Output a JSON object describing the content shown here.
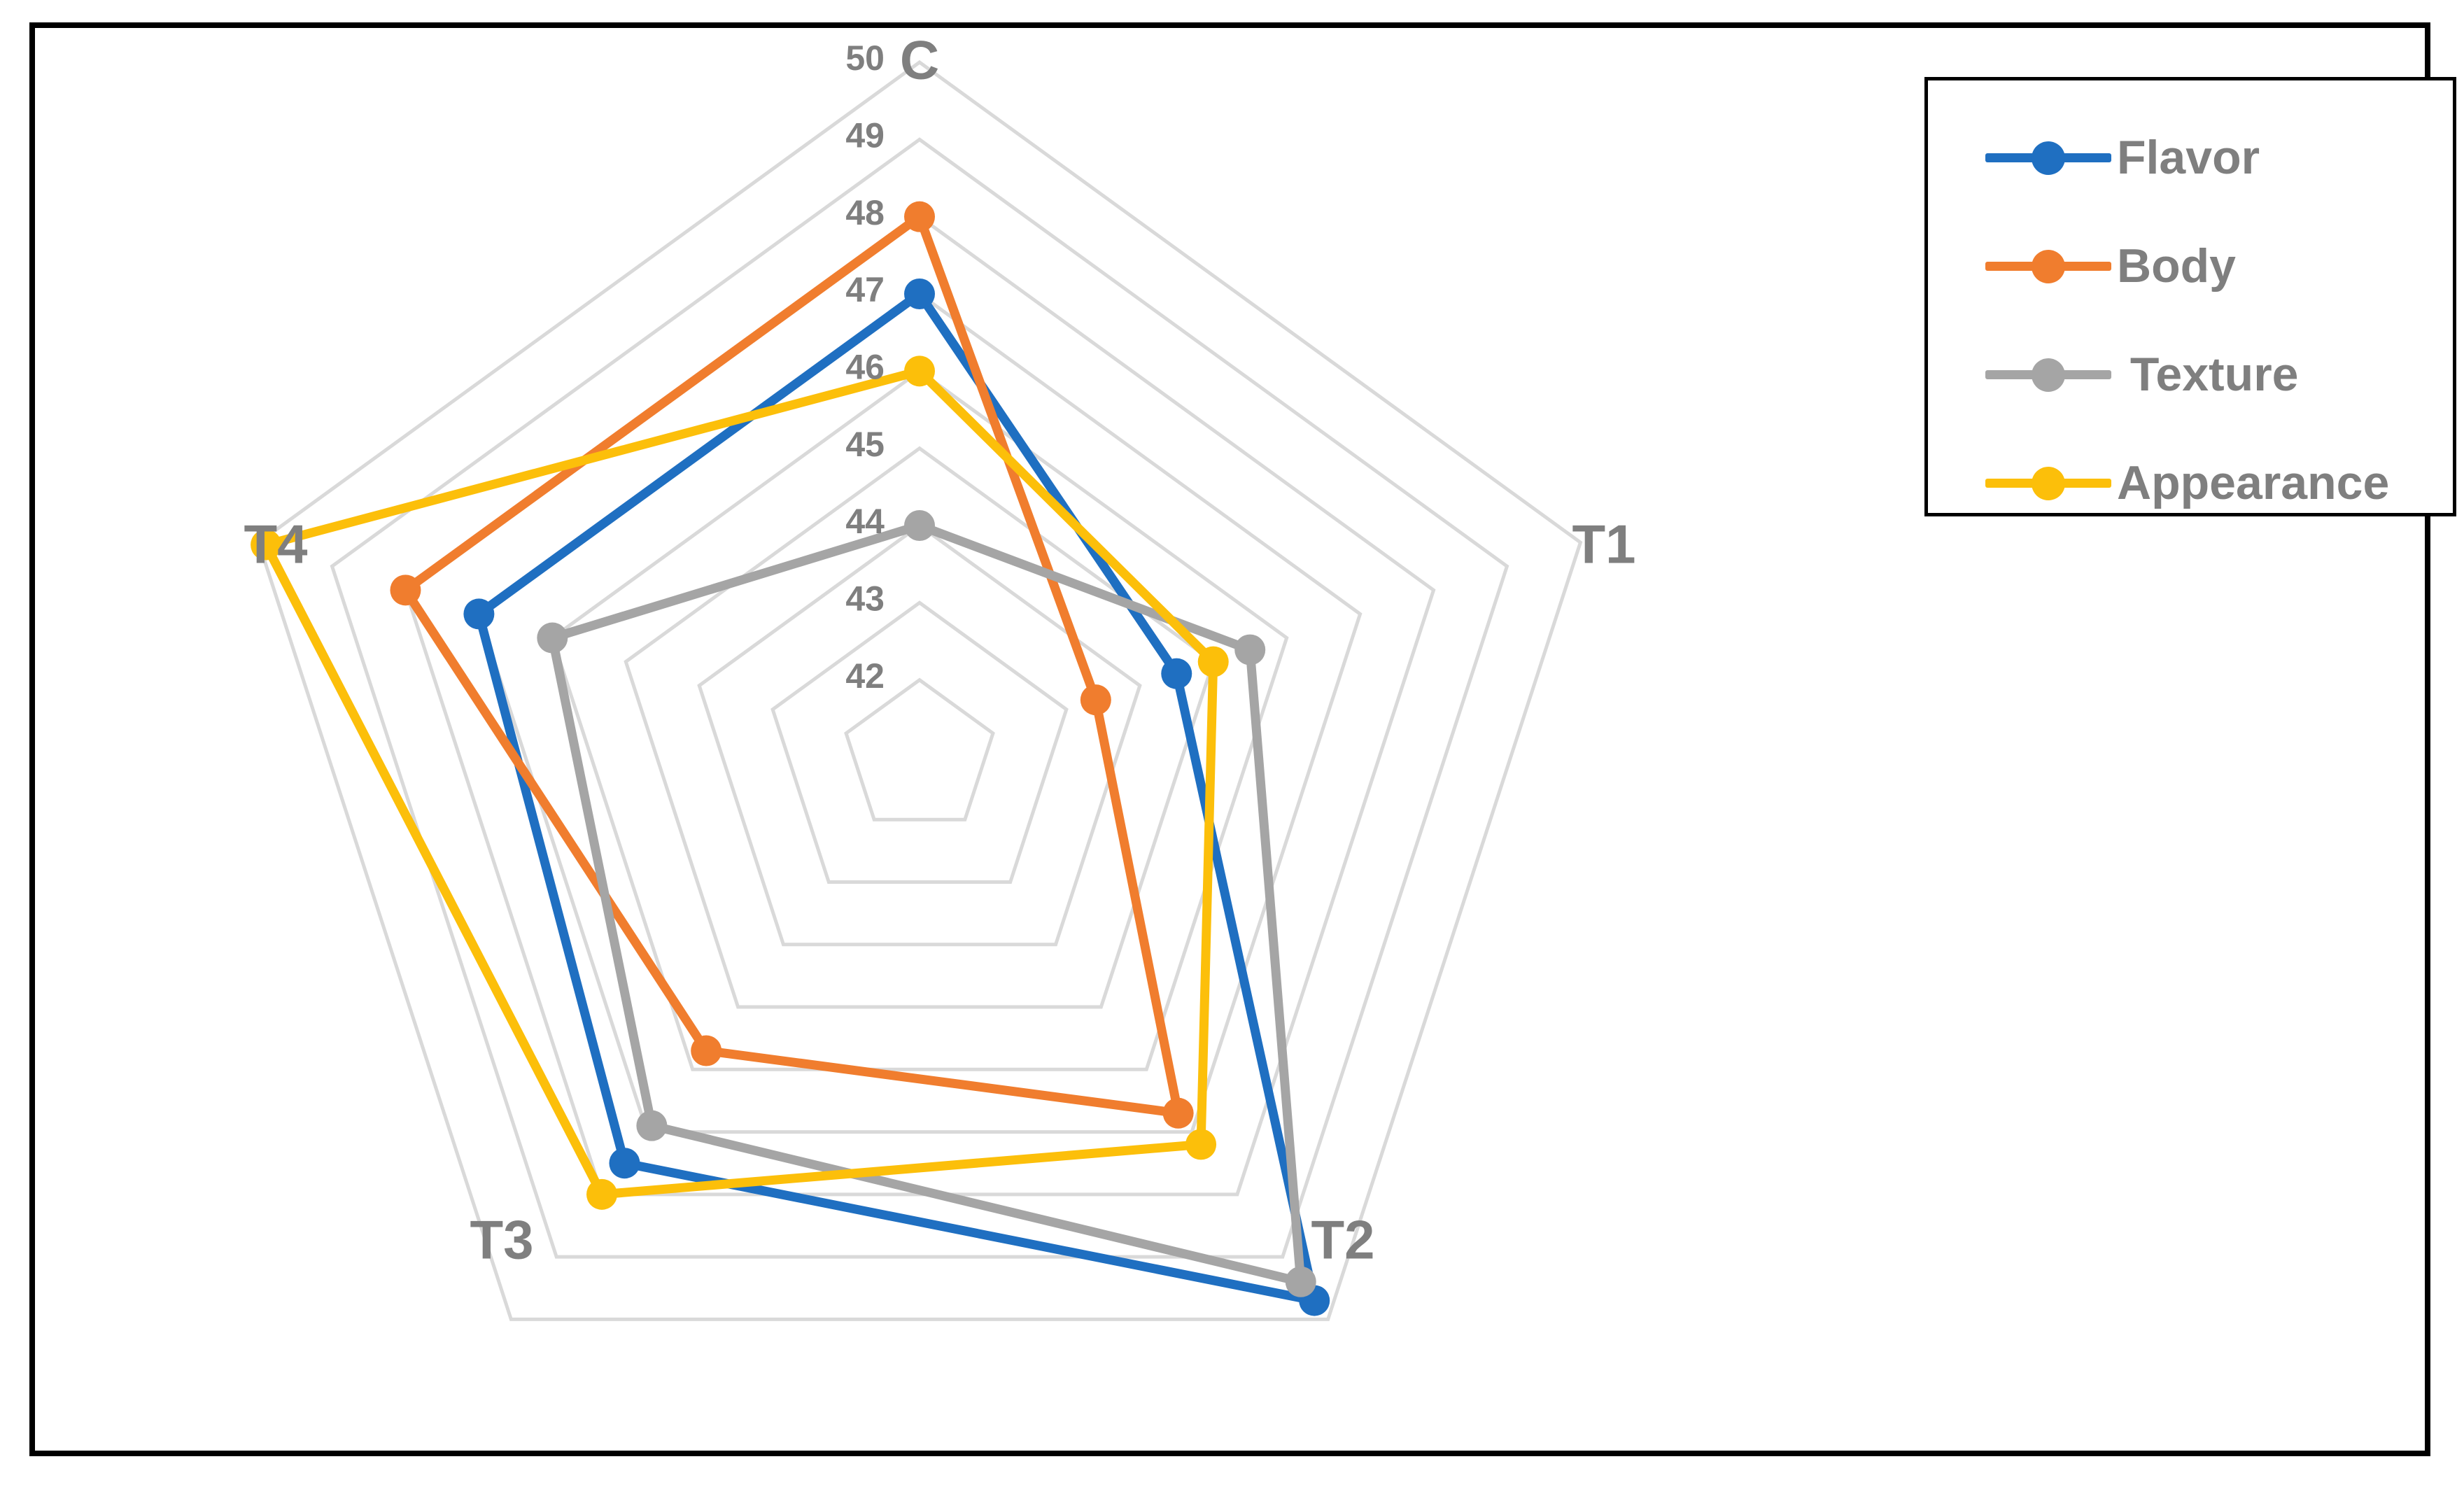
{
  "chart_data": {
    "type": "radar",
    "title": "",
    "categories": [
      "C",
      "T1",
      "T2",
      "T3",
      "T4"
    ],
    "rlim": [
      41,
      50
    ],
    "rticks": [
      42,
      43,
      44,
      45,
      46,
      47,
      48,
      49,
      50
    ],
    "gridlines": true,
    "legend_position": "top-right",
    "series": [
      {
        "name": "Flavor",
        "color": "#1f6fc1",
        "values": [
          47,
          44.5,
          49.7,
          47.5,
          47
        ]
      },
      {
        "name": "Body",
        "color": "#f07d2e",
        "values": [
          48,
          43.4,
          46.7,
          45.7,
          48
        ]
      },
      {
        "name": " Texture",
        "color": "#a5a5a5",
        "values": [
          44,
          45.5,
          49.4,
          46.9,
          46
        ]
      },
      {
        "name": "Appearance",
        "color": "#fcbf0a",
        "values": [
          46,
          45,
          47.2,
          48,
          49.9
        ]
      }
    ]
  }
}
